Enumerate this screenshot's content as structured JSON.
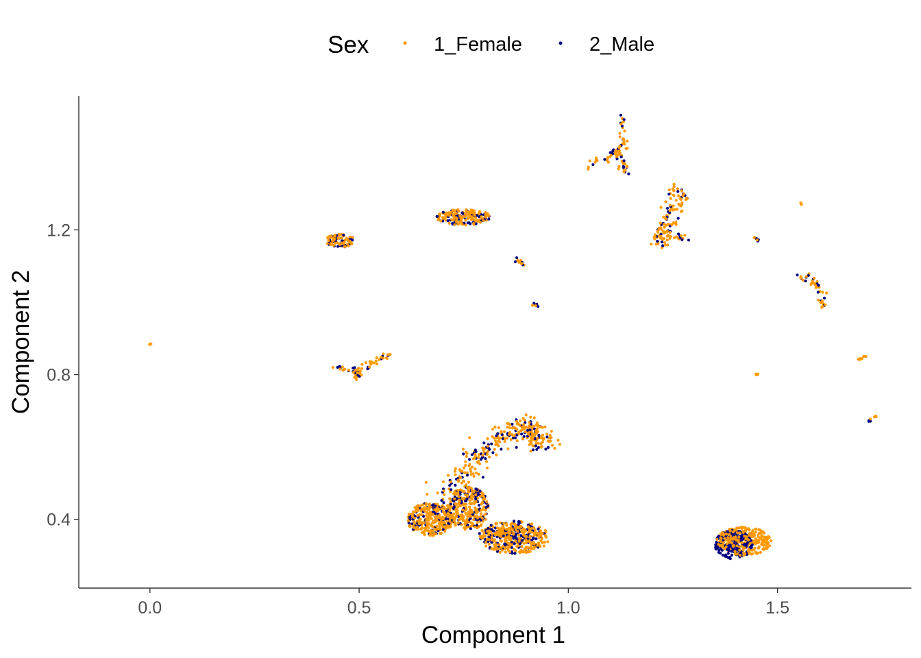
{
  "chart_data": {
    "type": "scatter",
    "title": "",
    "xlabel": "Component 1",
    "ylabel": "Component 2",
    "xlim": [
      -0.17,
      1.82
    ],
    "ylim": [
      0.21,
      1.57
    ],
    "x_ticks": [
      0.0,
      0.5,
      1.0,
      1.5
    ],
    "x_tick_labels": [
      "0.0",
      "0.5",
      "1.0",
      "1.5"
    ],
    "y_ticks": [
      0.4,
      0.8,
      1.2
    ],
    "y_tick_labels": [
      "0.4",
      "0.8",
      "1.2"
    ],
    "grid": false,
    "legend": {
      "title": "Sex",
      "position": "top",
      "entries": [
        {
          "name": "1_Female",
          "color": "#FF9900"
        },
        {
          "name": "2_Male",
          "color": "#000080"
        }
      ]
    },
    "series": [
      {
        "name": "1_Female",
        "color": "#FF9900",
        "clusters": [
          {
            "shape": "blob",
            "cx": 0.455,
            "cy": 1.17,
            "rx": 0.035,
            "ry": 0.018,
            "n": 70
          },
          {
            "shape": "blob",
            "cx": 0.75,
            "cy": 1.235,
            "rx": 0.065,
            "ry": 0.022,
            "n": 140
          },
          {
            "shape": "polyline",
            "points": [
              [
                0.44,
                0.82
              ],
              [
                0.49,
                0.81
              ],
              [
                0.5,
                0.79
              ]
            ],
            "spread": 0.005,
            "n": 20
          },
          {
            "shape": "polyline",
            "points": [
              [
                0.49,
                0.81
              ],
              [
                0.57,
                0.855
              ]
            ],
            "spread": 0.005,
            "n": 25
          },
          {
            "shape": "polyline",
            "points": [
              [
                0.875,
                1.12
              ],
              [
                0.9,
                1.1
              ]
            ],
            "spread": 0.003,
            "n": 8
          },
          {
            "shape": "polyline",
            "points": [
              [
                0.915,
                0.995
              ],
              [
                0.93,
                0.99
              ]
            ],
            "spread": 0.002,
            "n": 5
          },
          {
            "shape": "polyline",
            "points": [
              [
                0.0,
                0.885
              ],
              [
                0.005,
                0.883
              ]
            ],
            "spread": 0.002,
            "n": 3
          },
          {
            "shape": "polyline",
            "points": [
              [
                1.05,
                1.38
              ],
              [
                1.11,
                1.41
              ],
              [
                1.13,
                1.43
              ],
              [
                1.13,
                1.51
              ]
            ],
            "spread": 0.006,
            "n": 40
          },
          {
            "shape": "polyline",
            "points": [
              [
                1.12,
                1.42
              ],
              [
                1.13,
                1.38
              ],
              [
                1.14,
                1.36
              ]
            ],
            "spread": 0.006,
            "n": 18
          },
          {
            "shape": "polyline",
            "points": [
              [
                1.2,
                1.15
              ],
              [
                1.23,
                1.2
              ],
              [
                1.24,
                1.25
              ],
              [
                1.25,
                1.32
              ],
              [
                1.28,
                1.29
              ],
              [
                1.26,
                1.25
              ],
              [
                1.24,
                1.19
              ],
              [
                1.28,
                1.17
              ]
            ],
            "spread": 0.008,
            "n": 80
          },
          {
            "shape": "blob",
            "cx": 1.225,
            "cy": 1.18,
            "rx": 0.02,
            "ry": 0.03,
            "n": 30
          },
          {
            "shape": "polyline",
            "points": [
              [
                1.55,
                1.07
              ],
              [
                1.58,
                1.06
              ],
              [
                1.6,
                1.03
              ],
              [
                1.61,
                0.99
              ]
            ],
            "spread": 0.006,
            "n": 30
          },
          {
            "shape": "polyline",
            "points": [
              [
                1.445,
                1.18
              ],
              [
                1.452,
                1.17
              ]
            ],
            "spread": 0.002,
            "n": 4
          },
          {
            "shape": "polyline",
            "points": [
              [
                1.555,
                1.27
              ],
              [
                1.558,
                1.27
              ]
            ],
            "spread": 0.002,
            "n": 3
          },
          {
            "shape": "polyline",
            "points": [
              [
                1.45,
                0.8
              ],
              [
                1.455,
                0.803
              ]
            ],
            "spread": 0.002,
            "n": 4
          },
          {
            "shape": "polyline",
            "points": [
              [
                1.69,
                0.84
              ],
              [
                1.71,
                0.85
              ]
            ],
            "spread": 0.002,
            "n": 6
          },
          {
            "shape": "polyline",
            "points": [
              [
                1.72,
                0.67
              ],
              [
                1.735,
                0.69
              ]
            ],
            "spread": 0.002,
            "n": 4
          },
          {
            "shape": "blob",
            "cx": 0.67,
            "cy": 0.4,
            "rx": 0.055,
            "ry": 0.045,
            "n": 260
          },
          {
            "shape": "blob",
            "cx": 0.76,
            "cy": 0.43,
            "rx": 0.05,
            "ry": 0.06,
            "n": 220
          },
          {
            "shape": "blob",
            "cx": 0.87,
            "cy": 0.35,
            "rx": 0.085,
            "ry": 0.045,
            "n": 300
          },
          {
            "shape": "polyline",
            "points": [
              [
                0.7,
                0.47
              ],
              [
                0.77,
                0.55
              ],
              [
                0.83,
                0.62
              ],
              [
                0.88,
                0.655
              ],
              [
                0.92,
                0.64
              ],
              [
                0.94,
                0.61
              ]
            ],
            "spread": 0.018,
            "n": 220
          },
          {
            "shape": "blob",
            "cx": 1.42,
            "cy": 0.34,
            "rx": 0.065,
            "ry": 0.04,
            "n": 260
          }
        ]
      },
      {
        "name": "2_Male",
        "color": "#000080",
        "clusters": [
          {
            "shape": "blob",
            "cx": 0.455,
            "cy": 1.17,
            "rx": 0.035,
            "ry": 0.018,
            "n": 30
          },
          {
            "shape": "blob",
            "cx": 0.75,
            "cy": 1.235,
            "rx": 0.065,
            "ry": 0.022,
            "n": 50
          },
          {
            "shape": "polyline",
            "points": [
              [
                0.44,
                0.82
              ],
              [
                0.49,
                0.81
              ],
              [
                0.5,
                0.79
              ]
            ],
            "spread": 0.005,
            "n": 10
          },
          {
            "shape": "polyline",
            "points": [
              [
                0.49,
                0.81
              ],
              [
                0.57,
                0.855
              ]
            ],
            "spread": 0.005,
            "n": 10
          },
          {
            "shape": "polyline",
            "points": [
              [
                0.875,
                1.12
              ],
              [
                0.9,
                1.1
              ]
            ],
            "spread": 0.003,
            "n": 4
          },
          {
            "shape": "polyline",
            "points": [
              [
                0.915,
                0.995
              ],
              [
                0.93,
                0.99
              ]
            ],
            "spread": 0.002,
            "n": 3
          },
          {
            "shape": "polyline",
            "points": [
              [
                1.05,
                1.38
              ],
              [
                1.11,
                1.41
              ],
              [
                1.13,
                1.43
              ],
              [
                1.13,
                1.51
              ]
            ],
            "spread": 0.006,
            "n": 16
          },
          {
            "shape": "polyline",
            "points": [
              [
                1.12,
                1.42
              ],
              [
                1.13,
                1.38
              ],
              [
                1.14,
                1.36
              ]
            ],
            "spread": 0.006,
            "n": 8
          },
          {
            "shape": "polyline",
            "points": [
              [
                1.2,
                1.15
              ],
              [
                1.23,
                1.2
              ],
              [
                1.24,
                1.25
              ],
              [
                1.25,
                1.32
              ],
              [
                1.28,
                1.29
              ],
              [
                1.26,
                1.25
              ],
              [
                1.24,
                1.19
              ],
              [
                1.28,
                1.17
              ]
            ],
            "spread": 0.008,
            "n": 30
          },
          {
            "shape": "polyline",
            "points": [
              [
                1.55,
                1.07
              ],
              [
                1.58,
                1.06
              ],
              [
                1.6,
                1.03
              ],
              [
                1.61,
                0.99
              ]
            ],
            "spread": 0.006,
            "n": 12
          },
          {
            "shape": "polyline",
            "points": [
              [
                1.445,
                1.18
              ],
              [
                1.452,
                1.17
              ]
            ],
            "spread": 0.002,
            "n": 3
          },
          {
            "shape": "polyline",
            "points": [
              [
                1.72,
                0.67
              ],
              [
                1.735,
                0.69
              ]
            ],
            "spread": 0.002,
            "n": 3
          },
          {
            "shape": "blob",
            "cx": 0.67,
            "cy": 0.4,
            "rx": 0.055,
            "ry": 0.045,
            "n": 80
          },
          {
            "shape": "blob",
            "cx": 0.76,
            "cy": 0.43,
            "rx": 0.05,
            "ry": 0.06,
            "n": 80
          },
          {
            "shape": "blob",
            "cx": 0.87,
            "cy": 0.35,
            "rx": 0.085,
            "ry": 0.045,
            "n": 120
          },
          {
            "shape": "polyline",
            "points": [
              [
                0.7,
                0.47
              ],
              [
                0.77,
                0.55
              ],
              [
                0.83,
                0.62
              ],
              [
                0.88,
                0.655
              ],
              [
                0.92,
                0.64
              ],
              [
                0.94,
                0.61
              ]
            ],
            "spread": 0.018,
            "n": 80
          },
          {
            "shape": "blob",
            "cx": 1.395,
            "cy": 0.33,
            "rx": 0.045,
            "ry": 0.04,
            "n": 180
          }
        ]
      }
    ]
  }
}
